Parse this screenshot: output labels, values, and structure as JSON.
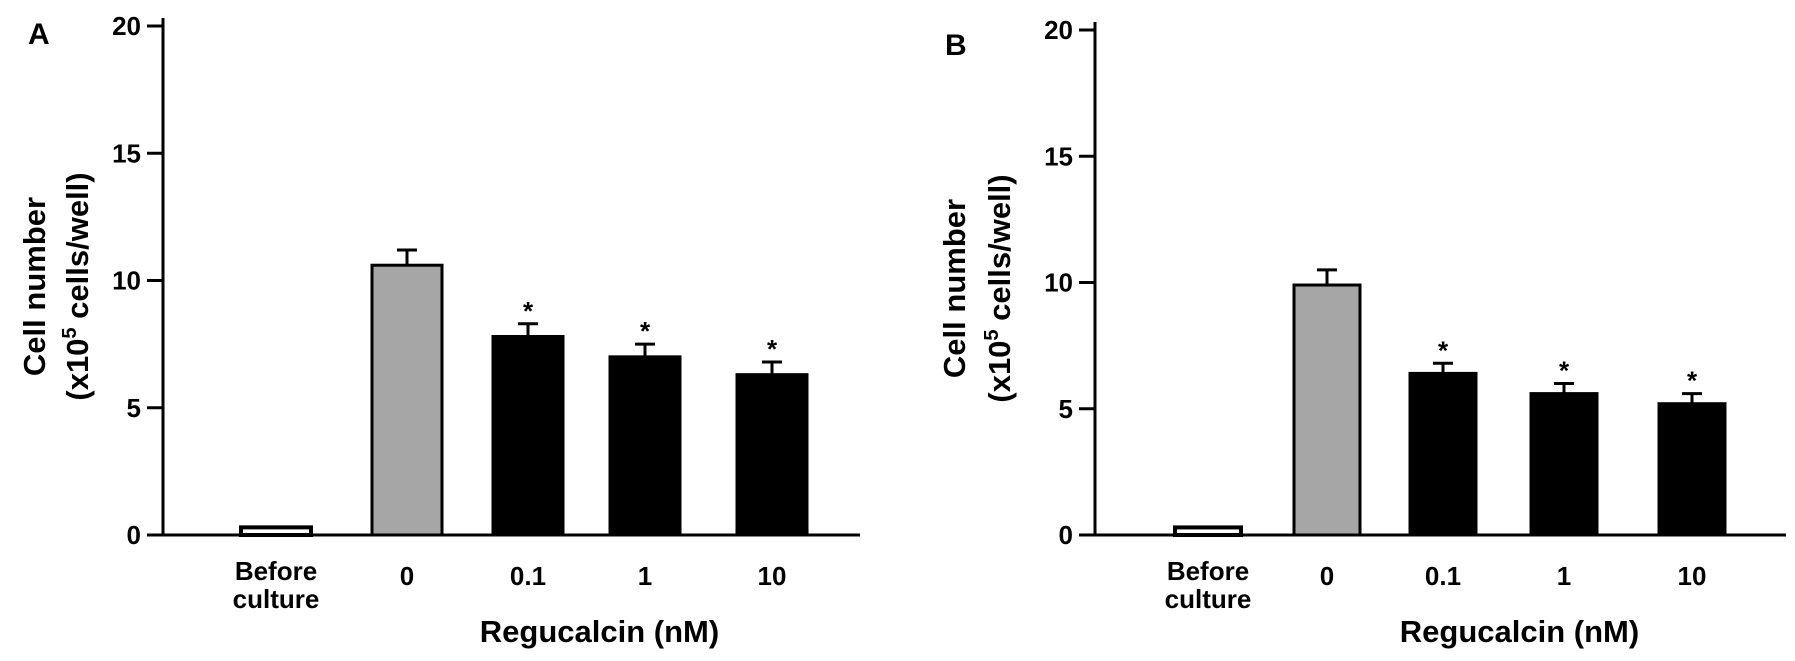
{
  "chart_data": [
    {
      "type": "bar",
      "panel_label": "A",
      "categories": [
        [
          "Before",
          "culture"
        ],
        [
          "0"
        ],
        [
          "0.1"
        ],
        [
          "1"
        ],
        [
          "10"
        ]
      ],
      "values": [
        0.3,
        10.6,
        7.8,
        7.0,
        6.3
      ],
      "errors": [
        0,
        0.6,
        0.5,
        0.5,
        0.5
      ],
      "significance": [
        "",
        "",
        "*",
        "*",
        "*"
      ],
      "bar_colors": [
        "#ffffff",
        "#a6a6a6",
        "#000000",
        "#000000",
        "#000000"
      ],
      "xlabel": "Regucalcin (nM)",
      "ylabel": [
        "Cell number",
        "(x10",
        "5",
        " cells/well)"
      ],
      "ylim": [
        0,
        20
      ],
      "yticks": [
        "0",
        "5",
        "10",
        "15",
        "20"
      ],
      "grid": false
    },
    {
      "type": "bar",
      "panel_label": "B",
      "categories": [
        [
          "Before",
          "culture"
        ],
        [
          "0"
        ],
        [
          "0.1"
        ],
        [
          "1"
        ],
        [
          "10"
        ]
      ],
      "values": [
        0.3,
        9.9,
        6.4,
        5.6,
        5.2
      ],
      "errors": [
        0,
        0.6,
        0.4,
        0.4,
        0.4
      ],
      "significance": [
        "",
        "",
        "*",
        "*",
        "*"
      ],
      "bar_colors": [
        "#ffffff",
        "#a6a6a6",
        "#000000",
        "#000000",
        "#000000"
      ],
      "xlabel": "Regucalcin (nM)",
      "ylabel": [
        "Cell number",
        "(x10",
        "5",
        " cells/well)"
      ],
      "ylim": [
        0,
        20
      ],
      "yticks": [
        "0",
        "5",
        "10",
        "15",
        "20"
      ],
      "grid": false
    }
  ]
}
